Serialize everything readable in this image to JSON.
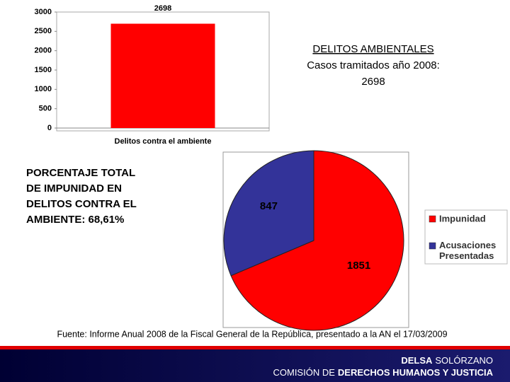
{
  "chart_data": [
    {
      "type": "bar",
      "categories": [
        "Delitos contra el ambiente"
      ],
      "values": [
        2698
      ],
      "color": "#ff0000",
      "ylim": [
        0,
        3000
      ],
      "yticks": [
        0,
        500,
        1000,
        1500,
        2000,
        2500,
        3000
      ]
    },
    {
      "type": "pie",
      "categories": [
        "Impunidad",
        "Acusaciones Presentadas"
      ],
      "values": [
        1851,
        847
      ],
      "colors": [
        "#ff0000",
        "#333399"
      ]
    }
  ],
  "slide": {
    "heading": "DELITOS AMBIENTALES",
    "subheading_lines": [
      "Casos tramitados año 2008:",
      "2698"
    ],
    "impunity_lines": [
      "PORCENTAJE TOTAL",
      "DE IMPUNIDAD EN",
      "DELITOS CONTRA EL",
      "AMBIENTE: 68,61%"
    ],
    "source": "Fuente: Informe Anual 2008 de la Fiscal General de la República, presentado a la AN el 17/03/2009",
    "footer": {
      "name_bold": "DELSA",
      "name": "SOLÓRZANO",
      "org": "COMISIÓN DE",
      "org_bold": "DERECHOS HUMANOS Y JUSTICIA"
    }
  }
}
